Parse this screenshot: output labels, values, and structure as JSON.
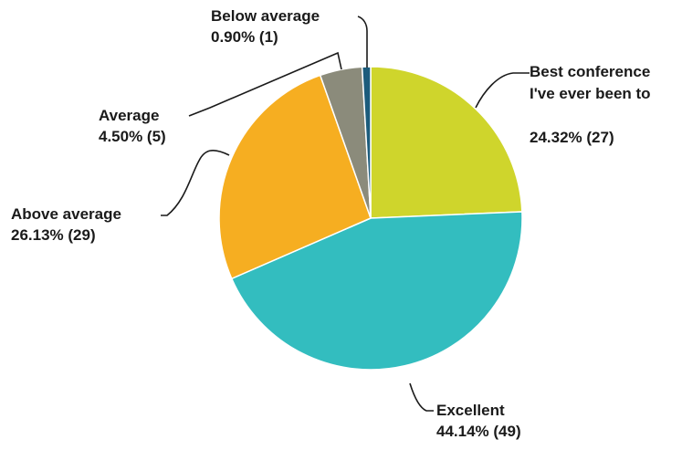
{
  "chart_data": {
    "type": "pie",
    "title": "",
    "legend": "none",
    "slices": [
      {
        "label_lines": [
          "Best conference",
          "I've ever been to"
        ],
        "percent_label": "24.32% (27)",
        "percent": 24.32,
        "count": 27,
        "color": "#cfd52c"
      },
      {
        "label_lines": [
          "Excellent"
        ],
        "percent_label": "44.14% (49)",
        "percent": 44.14,
        "count": 49,
        "color": "#33bdbf"
      },
      {
        "label_lines": [
          "Above average"
        ],
        "percent_label": "26.13% (29)",
        "percent": 26.13,
        "count": 29,
        "color": "#f6ae21"
      },
      {
        "label_lines": [
          "Average"
        ],
        "percent_label": "4.50% (5)",
        "percent": 4.5,
        "count": 5,
        "color": "#8b8b7b"
      },
      {
        "label_lines": [
          "Below average"
        ],
        "percent_label": "0.90% (1)",
        "percent": 0.9,
        "count": 1,
        "color": "#1c5c7c"
      }
    ]
  }
}
